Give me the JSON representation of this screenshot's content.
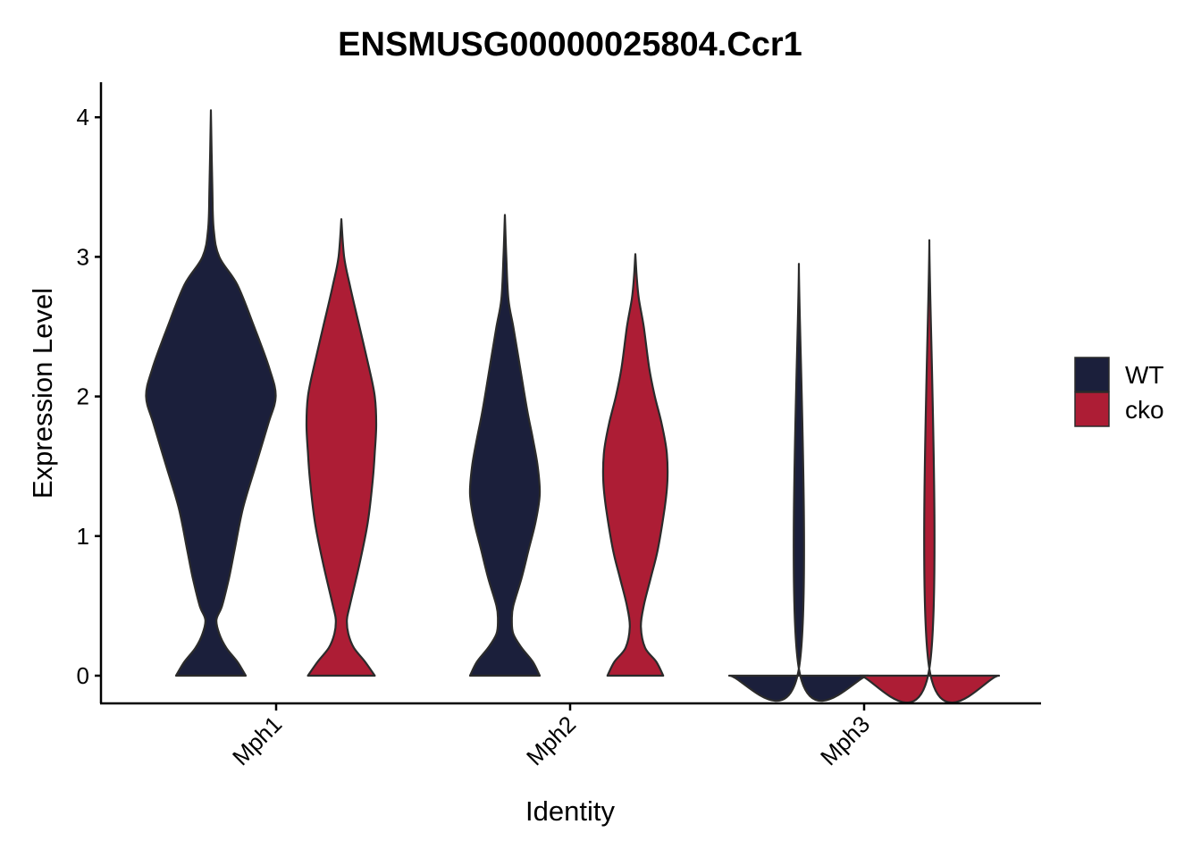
{
  "chart_data": {
    "type": "violin",
    "title": "ENSMUSG00000025804.Ccr1",
    "xlabel": "Identity",
    "ylabel": "Expression Level",
    "categories": [
      "Mph1",
      "Mph2",
      "Mph3"
    ],
    "y_ticks": [
      "0",
      "1",
      "2",
      "3",
      "4"
    ],
    "ylim": [
      -0.2,
      4.25
    ],
    "legend": {
      "position": "right",
      "items": [
        "WT",
        "cko"
      ]
    },
    "colors": {
      "WT": "#1b1f3b",
      "cko": "#ad1d35"
    },
    "series": [
      {
        "name": "WT",
        "color": "#1b1f3b",
        "violins": [
          {
            "category": "Mph1",
            "max": 4.05,
            "profile": [
              [
                0.0,
                0.5
              ],
              [
                0.1,
                0.38
              ],
              [
                0.2,
                0.22
              ],
              [
                0.3,
                0.12
              ],
              [
                0.4,
                0.08
              ],
              [
                0.5,
                0.16
              ],
              [
                0.7,
                0.26
              ],
              [
                0.9,
                0.34
              ],
              [
                1.2,
                0.46
              ],
              [
                1.5,
                0.64
              ],
              [
                1.8,
                0.82
              ],
              [
                2.0,
                0.93
              ],
              [
                2.2,
                0.84
              ],
              [
                2.5,
                0.62
              ],
              [
                2.8,
                0.38
              ],
              [
                3.0,
                0.12
              ],
              [
                3.2,
                0.04
              ],
              [
                3.5,
                0.02
              ],
              [
                4.05,
                0.0
              ]
            ]
          },
          {
            "category": "Mph2",
            "max": 3.3,
            "profile": [
              [
                0.0,
                0.5
              ],
              [
                0.1,
                0.4
              ],
              [
                0.2,
                0.24
              ],
              [
                0.3,
                0.12
              ],
              [
                0.4,
                0.1
              ],
              [
                0.5,
                0.12
              ],
              [
                0.7,
                0.24
              ],
              [
                0.9,
                0.34
              ],
              [
                1.1,
                0.44
              ],
              [
                1.3,
                0.5
              ],
              [
                1.5,
                0.47
              ],
              [
                1.7,
                0.4
              ],
              [
                1.9,
                0.32
              ],
              [
                2.2,
                0.22
              ],
              [
                2.5,
                0.12
              ],
              [
                2.7,
                0.05
              ],
              [
                3.0,
                0.02
              ],
              [
                3.3,
                0.0
              ]
            ]
          },
          {
            "category": "Mph3",
            "max": 2.95,
            "profile": [
              [
                0.0,
                1.0
              ],
              [
                0.05,
                0.0
              ],
              [
                2.95,
                0.0
              ]
            ]
          }
        ]
      },
      {
        "name": "cko",
        "color": "#ad1d35",
        "violins": [
          {
            "category": "Mph1",
            "max": 3.27,
            "profile": [
              [
                0.0,
                0.48
              ],
              [
                0.1,
                0.34
              ],
              [
                0.2,
                0.18
              ],
              [
                0.3,
                0.1
              ],
              [
                0.4,
                0.08
              ],
              [
                0.5,
                0.12
              ],
              [
                0.8,
                0.26
              ],
              [
                1.1,
                0.38
              ],
              [
                1.4,
                0.45
              ],
              [
                1.6,
                0.48
              ],
              [
                1.8,
                0.5
              ],
              [
                2.0,
                0.48
              ],
              [
                2.2,
                0.4
              ],
              [
                2.5,
                0.26
              ],
              [
                2.8,
                0.12
              ],
              [
                3.0,
                0.04
              ],
              [
                3.27,
                0.0
              ]
            ]
          },
          {
            "category": "Mph2",
            "max": 3.02,
            "profile": [
              [
                0.0,
                0.4
              ],
              [
                0.1,
                0.3
              ],
              [
                0.2,
                0.14
              ],
              [
                0.35,
                0.08
              ],
              [
                0.5,
                0.12
              ],
              [
                0.7,
                0.22
              ],
              [
                0.9,
                0.32
              ],
              [
                1.2,
                0.42
              ],
              [
                1.4,
                0.46
              ],
              [
                1.6,
                0.45
              ],
              [
                1.8,
                0.38
              ],
              [
                2.0,
                0.28
              ],
              [
                2.2,
                0.2
              ],
              [
                2.5,
                0.12
              ],
              [
                2.7,
                0.05
              ],
              [
                2.85,
                0.02
              ],
              [
                3.02,
                0.0
              ]
            ]
          },
          {
            "category": "Mph3",
            "max": 3.12,
            "profile": [
              [
                0.0,
                1.0
              ],
              [
                0.05,
                0.0
              ],
              [
                3.12,
                0.0
              ]
            ]
          }
        ]
      }
    ]
  }
}
